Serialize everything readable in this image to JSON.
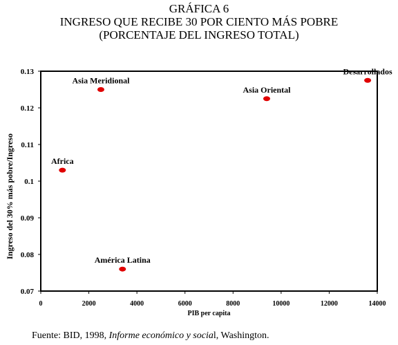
{
  "figure": {
    "label": "GRÁFICA 6",
    "title": "INGRESO QUE RECIBE 30 POR CIENTO MÁS POBRE",
    "subtitle": "(PORCENTAJE DEL INGRESO TOTAL)"
  },
  "source": {
    "prefix": "Fuente: BID, 1998, ",
    "italic": "Informe económico y socia",
    "suffix": "l, Washington."
  },
  "chart_data": {
    "type": "scatter",
    "xlabel": "PIB per capita",
    "ylabel": "Ingreso del 30% más pobre/Ingreso",
    "xlim": [
      0,
      14000
    ],
    "ylim": [
      0.07,
      0.13
    ],
    "xticks": [
      0,
      2000,
      4000,
      6000,
      8000,
      10000,
      12000,
      14000
    ],
    "yticks": [
      0.07,
      0.08,
      0.09,
      0.1,
      0.11,
      0.12,
      0.13
    ],
    "xtick_labels": [
      "0",
      "2000",
      "4000",
      "6000",
      "8000",
      "10000",
      "12000",
      "14000"
    ],
    "ytick_labels": [
      "0.07",
      "0.08",
      "0.09",
      "0.1",
      "0.11",
      "0.12",
      "0.13"
    ],
    "grid": false,
    "marker_color": "#e00000",
    "points": [
      {
        "label": "Asia Meridional",
        "x": 2500,
        "y": 0.125
      },
      {
        "label": "Asia Oriental",
        "x": 9400,
        "y": 0.1225
      },
      {
        "label": "Desarrollados",
        "x": 13600,
        "y": 0.1275
      },
      {
        "label": "Africa",
        "x": 900,
        "y": 0.103
      },
      {
        "label": "América Latina",
        "x": 3400,
        "y": 0.076
      }
    ]
  }
}
